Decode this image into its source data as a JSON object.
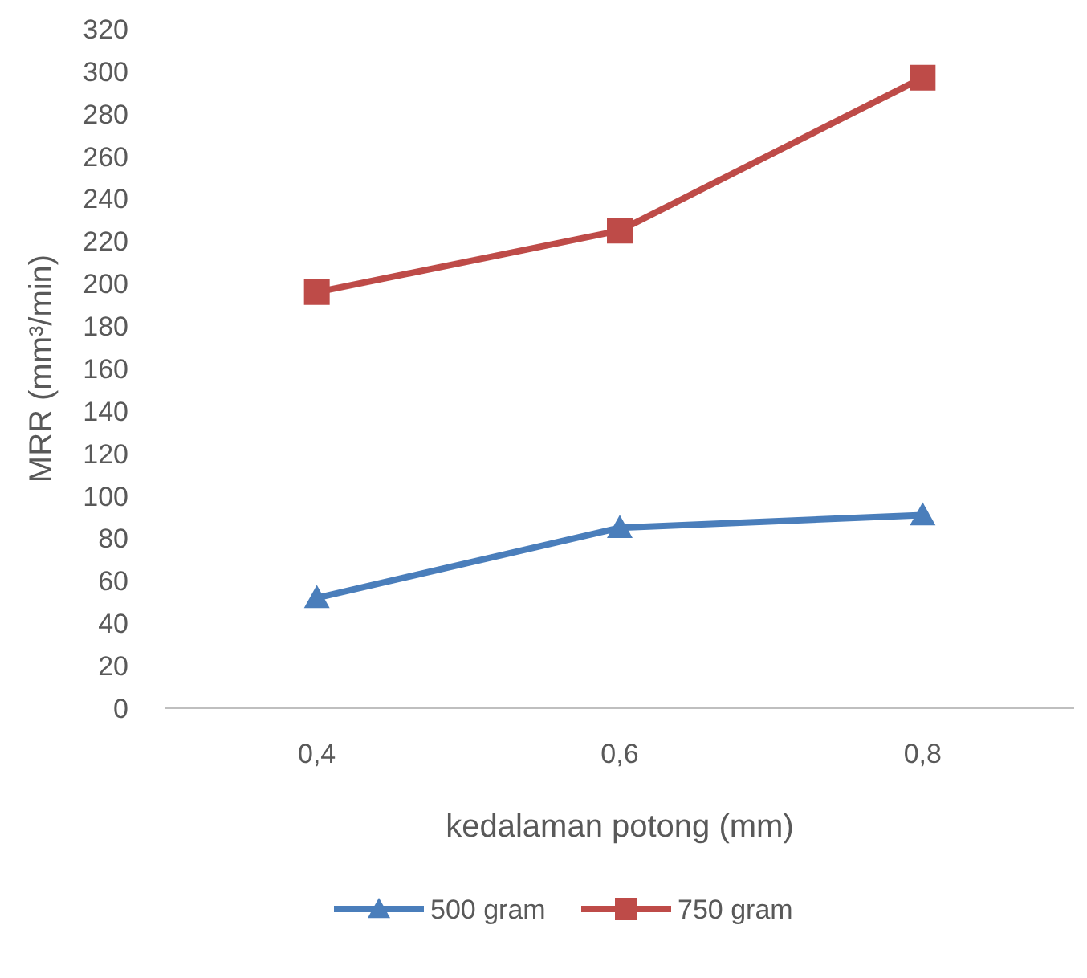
{
  "chart_data": {
    "type": "line",
    "xlabel": "kedalaman potong (mm)",
    "ylabel": "MRR (mm³/min)",
    "categories": [
      "0,4",
      "0,6",
      "0,8"
    ],
    "series": [
      {
        "name": "500 gram",
        "color": "#4a7ebb",
        "values": [
          52,
          85,
          91
        ],
        "marker": "triangle"
      },
      {
        "name": "750 gram",
        "color": "#be4b48",
        "values": [
          196,
          225,
          297
        ],
        "marker": "square"
      }
    ],
    "ylim": [
      0,
      320
    ],
    "yticks": [
      0,
      20,
      40,
      60,
      80,
      100,
      120,
      140,
      160,
      180,
      200,
      220,
      240,
      260,
      280,
      300,
      320
    ],
    "grid": false,
    "legend": "bottom",
    "line_style": "solid"
  }
}
